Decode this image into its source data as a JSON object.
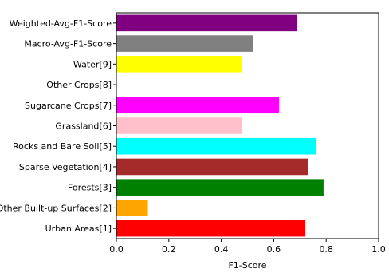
{
  "chart_data": {
    "type": "bar",
    "orientation": "horizontal",
    "title": "",
    "xlabel": "F1-Score",
    "ylabel": "",
    "xlim": [
      0.0,
      1.0
    ],
    "xticks": [
      "0.0",
      "0.2",
      "0.4",
      "0.6",
      "0.8",
      "1.0"
    ],
    "grid": false,
    "categories": [
      "Urban Areas[1]",
      "Other Built-up Surfaces[2]",
      "Forests[3]",
      "Sparse Vegetation[4]",
      "Rocks and Bare Soil[5]",
      "Grassland[6]",
      "Sugarcane Crops[7]",
      "Other Crops[8]",
      "Water[9]",
      "Macro-Avg-F1-Score",
      "Weighted-Avg-F1-Score"
    ],
    "values": [
      0.72,
      0.12,
      0.79,
      0.73,
      0.76,
      0.48,
      0.62,
      0.0,
      0.48,
      0.52,
      0.69
    ],
    "colors": [
      "#ff0000",
      "#ffa500",
      "#008000",
      "#a52a2a",
      "#00ffff",
      "#ffc0cb",
      "#ff00ff",
      "#ffffff",
      "#ffff00",
      "#808080",
      "#800080"
    ]
  }
}
